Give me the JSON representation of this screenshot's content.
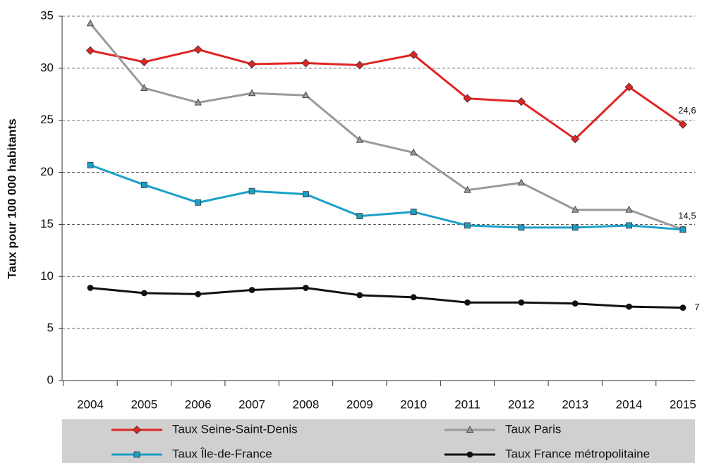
{
  "chart_data": {
    "type": "line",
    "y_label": "Taux pour 100 000 habitants",
    "categories": [
      "2004",
      "2005",
      "2006",
      "2007",
      "2008",
      "2009",
      "2010",
      "2011",
      "2012",
      "2013",
      "2014",
      "2015"
    ],
    "series": [
      {
        "name": "Taux Seine-Saint-Denis",
        "color": "#e02424",
        "marker": "diamond",
        "values": [
          31.7,
          30.6,
          31.8,
          30.4,
          30.5,
          30.3,
          31.3,
          27.1,
          26.8,
          23.2,
          28.2,
          24.6
        ],
        "value_labels": [
          null,
          null,
          null,
          null,
          null,
          null,
          null,
          null,
          null,
          null,
          null,
          "24,6"
        ]
      },
      {
        "name": "Taux Paris",
        "color": "#9a9a9a",
        "marker": "triangle",
        "values": [
          34.3,
          28.1,
          26.7,
          27.6,
          27.4,
          23.1,
          21.9,
          18.3,
          19.0,
          16.4,
          16.4,
          14.5
        ],
        "value_labels": [
          null,
          null,
          null,
          null,
          null,
          null,
          null,
          null,
          null,
          null,
          null,
          "14,5"
        ]
      },
      {
        "name": "Taux Île-de-France",
        "color": "#1aa0c8",
        "marker": "square",
        "values": [
          20.7,
          18.8,
          17.1,
          18.2,
          17.9,
          15.8,
          16.2,
          14.9,
          14.7,
          14.7,
          14.9,
          14.5
        ]
      },
      {
        "name": "Taux France métropolitaine",
        "color": "#111111",
        "marker": "circle",
        "values": [
          8.9,
          8.4,
          8.3,
          8.7,
          8.9,
          8.2,
          8.0,
          7.5,
          7.5,
          7.4,
          7.1,
          7.0
        ],
        "value_labels": [
          null,
          null,
          null,
          null,
          null,
          null,
          null,
          null,
          null,
          null,
          null,
          "7"
        ]
      }
    ],
    "ylim": [
      0,
      35
    ],
    "yticks": [
      0,
      5,
      10,
      15,
      20,
      25,
      30,
      35
    ],
    "grid": true
  }
}
